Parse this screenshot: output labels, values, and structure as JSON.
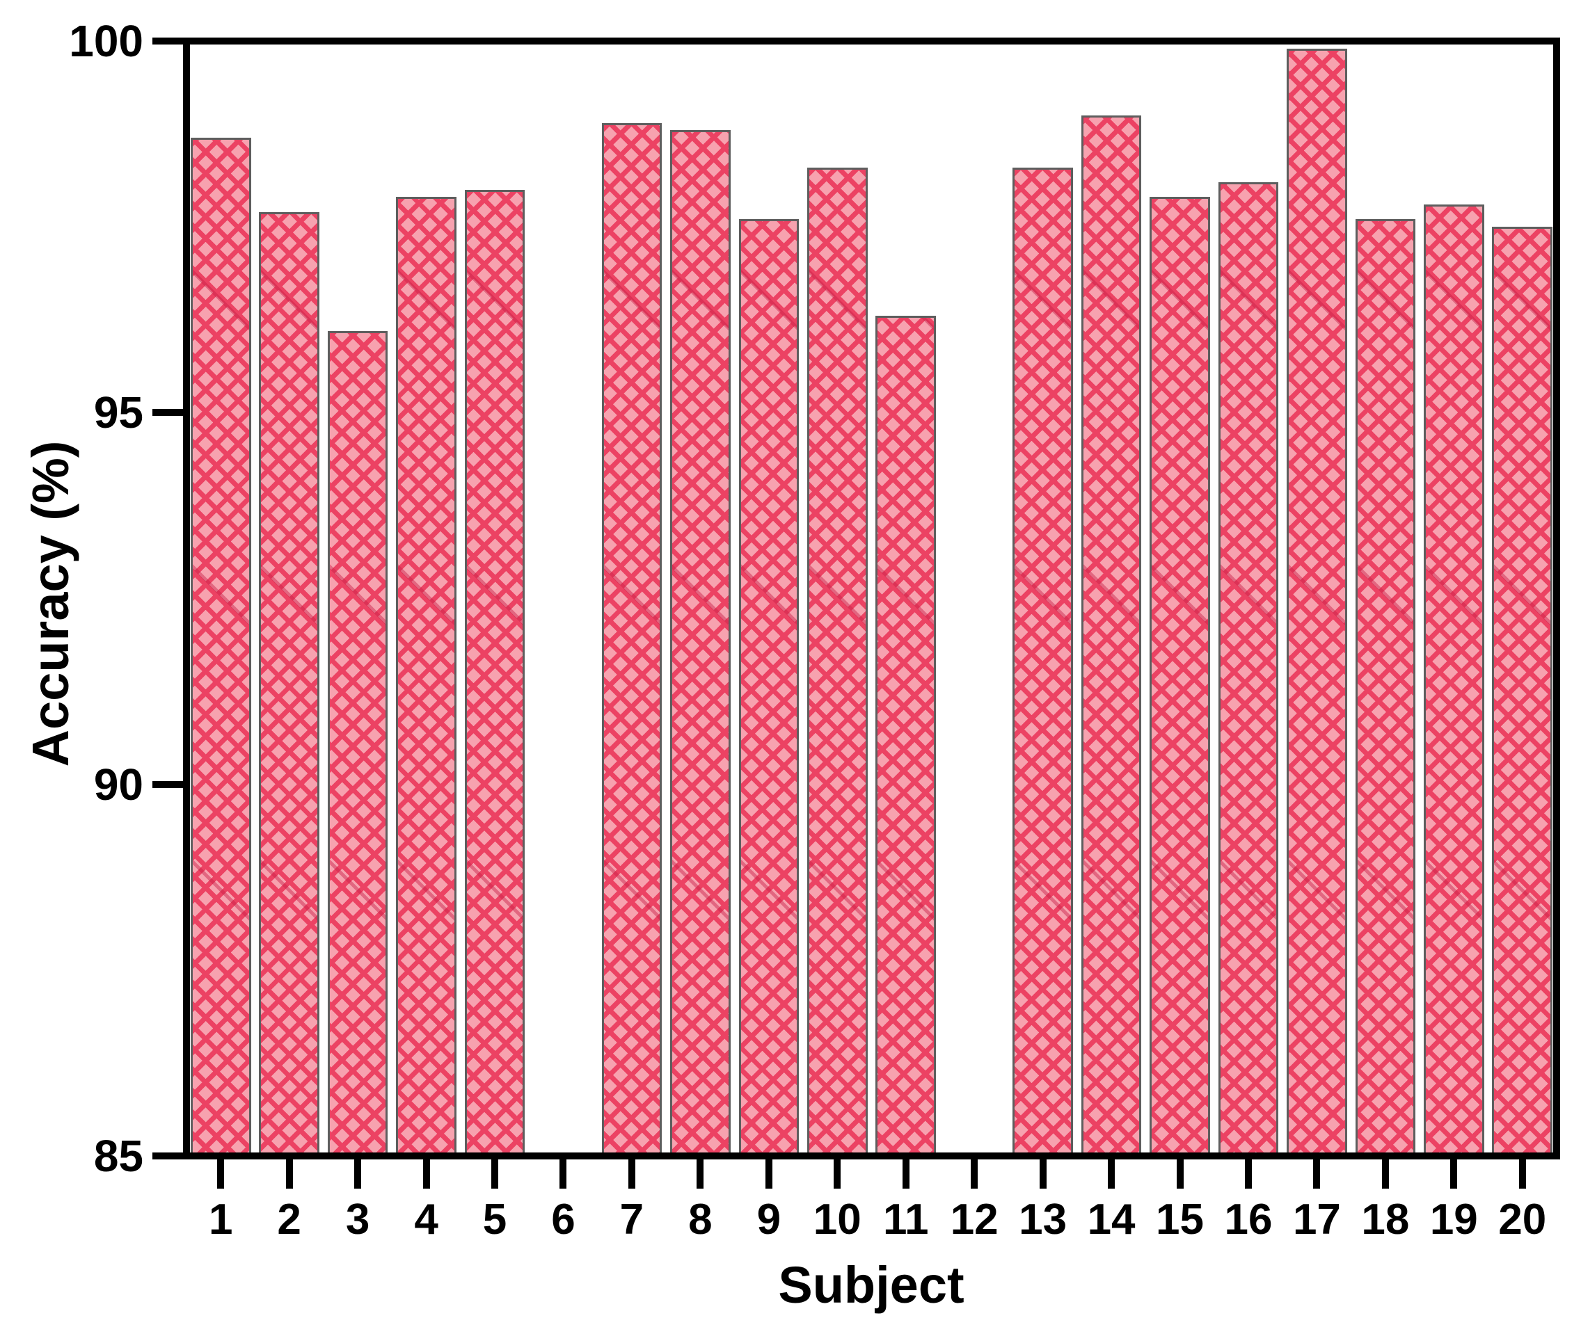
{
  "chart_data": {
    "type": "bar",
    "title": "",
    "xlabel": "Subject",
    "ylabel": "Accuracy (%)",
    "categories": [
      "1",
      "2",
      "3",
      "4",
      "5",
      "6",
      "7",
      "8",
      "9",
      "10",
      "11",
      "12",
      "13",
      "14",
      "15",
      "16",
      "17",
      "18",
      "19",
      "20"
    ],
    "values": [
      98.7,
      97.7,
      96.1,
      97.9,
      98.0,
      null,
      98.9,
      98.8,
      97.6,
      98.3,
      96.3,
      null,
      98.3,
      99.0,
      97.9,
      98.1,
      99.9,
      97.6,
      97.8,
      97.5
    ],
    "ylim": [
      85,
      100
    ],
    "yticks": [
      85,
      90,
      95,
      100
    ],
    "grid": false,
    "legend": "none",
    "bar_style": {
      "fill_color": "#F7A2AF",
      "hatch_color": "#EC4263",
      "hatch_accent_color": "#C81E46",
      "edge_color": "#5e5e5e",
      "hatch_pattern": "crosshatch"
    },
    "axis_color": "#000000"
  }
}
